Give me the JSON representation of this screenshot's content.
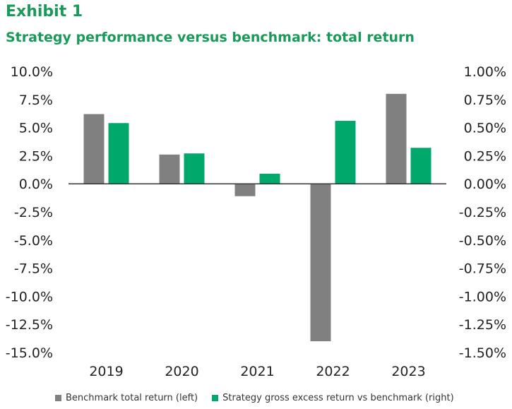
{
  "header": {
    "exhibit": "Exhibit 1",
    "title": "Strategy performance versus benchmark: total return"
  },
  "chart_data": {
    "type": "bar",
    "categories": [
      "2019",
      "2020",
      "2021",
      "2022",
      "2023"
    ],
    "series": [
      {
        "name": "Benchmark total return (left)",
        "axis": "left",
        "color": "#808080",
        "values": [
          6.2,
          2.6,
          -1.1,
          -14.0,
          8.0
        ]
      },
      {
        "name": "Strategy gross excess return vs benchmark (right)",
        "axis": "right",
        "color": "#00a86b",
        "values": [
          0.54,
          0.27,
          0.09,
          0.56,
          0.32
        ]
      }
    ],
    "left_axis": {
      "min": -15,
      "max": 10,
      "ticks": [
        "10.0%",
        "7.5%",
        "5.0%",
        "2.5%",
        "0.0%",
        "-2.5%",
        "-5.0%",
        "-7.5%",
        "-10.0%",
        "-12.5%",
        "-15.0%"
      ]
    },
    "right_axis": {
      "min": -1.5,
      "max": 1.0,
      "ticks": [
        "1.00%",
        "0.75%",
        "0.50%",
        "0.25%",
        "0.00%",
        "-0.25%",
        "-0.50%",
        "-0.75%",
        "-1.00%",
        "-1.25%",
        "-1.50%"
      ]
    },
    "grid": false,
    "legend_position": "bottom"
  }
}
